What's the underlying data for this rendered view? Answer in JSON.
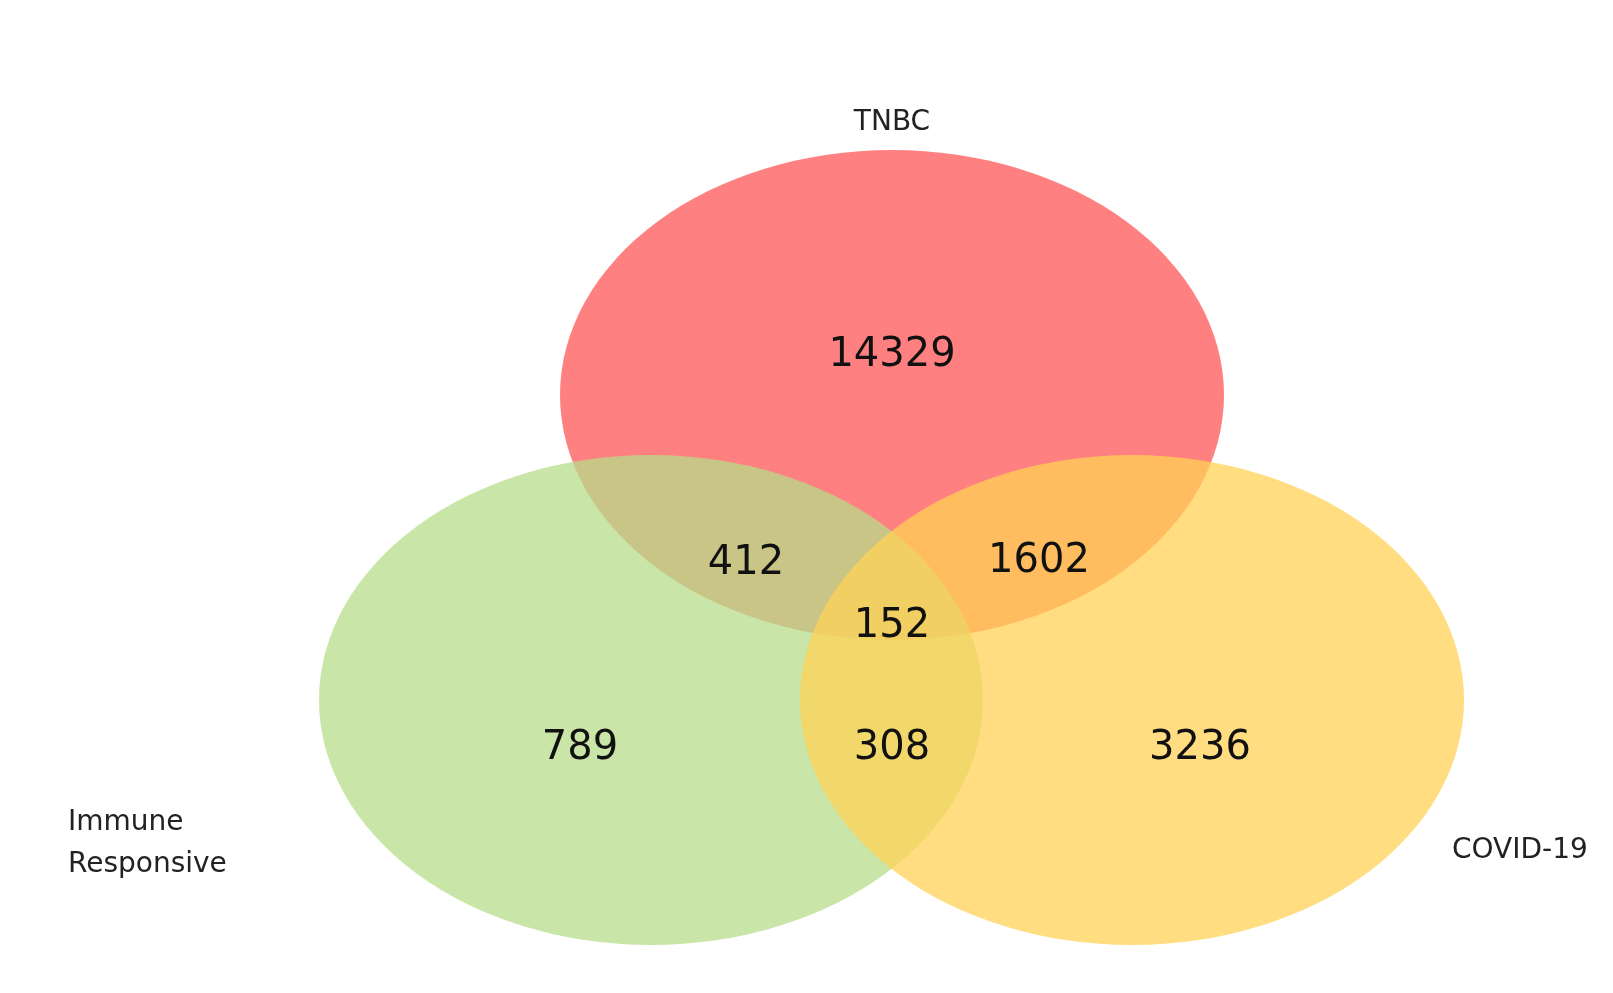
{
  "chart_data": {
    "type": "other",
    "annotations": [
      "TNBC",
      "Immune\nResponsive",
      "COVID-19"
    ],
    "categories": [
      null,
      null,
      null,
      null,
      null,
      null,
      null
    ],
    "values": [
      14329,
      412,
      1602,
      152,
      789,
      308,
      3236
    ],
    "data_labels": true
  }
}
